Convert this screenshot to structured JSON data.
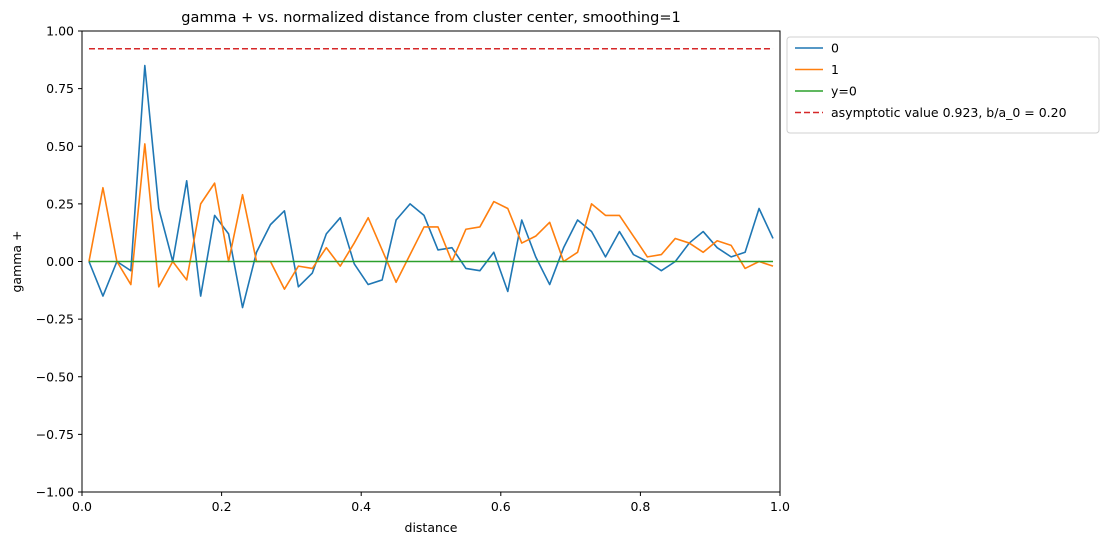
{
  "chart_data": {
    "type": "line",
    "title": "gamma + vs. normalized distance from cluster center, smoothing=1",
    "xlabel": "distance",
    "ylabel": "gamma +",
    "xlim": [
      0.0,
      1.0
    ],
    "ylim": [
      -1.0,
      1.0
    ],
    "xticks": [
      "0.0",
      "0.2",
      "0.4",
      "0.6",
      "0.8",
      "1.0"
    ],
    "xtick_values": [
      0.0,
      0.2,
      0.4,
      0.6,
      0.8,
      1.0
    ],
    "yticks": [
      "−1.00",
      "−0.75",
      "−0.50",
      "−0.25",
      "0.00",
      "0.25",
      "0.50",
      "0.75",
      "1.00"
    ],
    "ytick_values": [
      -1.0,
      -0.75,
      -0.5,
      -0.25,
      0.0,
      0.25,
      0.5,
      0.75,
      1.0
    ],
    "grid": false,
    "legend_position": "outside-top-right",
    "x": [
      0.01,
      0.03,
      0.05,
      0.07,
      0.09,
      0.11,
      0.13,
      0.15,
      0.17,
      0.19,
      0.21,
      0.23,
      0.25,
      0.27,
      0.29,
      0.31,
      0.33,
      0.35,
      0.37,
      0.39,
      0.41,
      0.43,
      0.45,
      0.47,
      0.49,
      0.51,
      0.53,
      0.55,
      0.57,
      0.59,
      0.61,
      0.63,
      0.65,
      0.67,
      0.69,
      0.71,
      0.73,
      0.75,
      0.77,
      0.79,
      0.81,
      0.83,
      0.85,
      0.87,
      0.89,
      0.91,
      0.93,
      0.95,
      0.97,
      0.99
    ],
    "series": [
      {
        "name": "0",
        "color": "#1f77b4",
        "style": "solid",
        "values": [
          0.0,
          -0.15,
          0.0,
          -0.04,
          0.85,
          0.23,
          0.0,
          0.35,
          -0.15,
          0.2,
          0.12,
          -0.2,
          0.04,
          0.16,
          0.22,
          -0.11,
          -0.05,
          0.12,
          0.19,
          -0.01,
          -0.1,
          -0.08,
          0.18,
          0.25,
          0.2,
          0.05,
          0.06,
          -0.03,
          -0.04,
          0.04,
          -0.13,
          0.18,
          0.02,
          -0.1,
          0.06,
          0.18,
          0.13,
          0.02,
          0.13,
          0.03,
          0.0,
          -0.04,
          0.0,
          0.08,
          0.13,
          0.06,
          0.02,
          0.04,
          0.23,
          0.1
        ]
      },
      {
        "name": "1",
        "color": "#ff7f0e",
        "style": "solid",
        "values": [
          0.0,
          0.32,
          0.0,
          -0.1,
          0.51,
          -0.11,
          0.0,
          -0.08,
          0.25,
          0.34,
          0.0,
          0.29,
          0.0,
          0.0,
          -0.12,
          -0.02,
          -0.03,
          0.06,
          -0.02,
          0.08,
          0.19,
          0.05,
          -0.09,
          0.03,
          0.15,
          0.15,
          0.0,
          0.14,
          0.15,
          0.26,
          0.23,
          0.08,
          0.11,
          0.17,
          0.0,
          0.04,
          0.25,
          0.2,
          0.2,
          0.11,
          0.02,
          0.03,
          0.1,
          0.08,
          0.04,
          0.09,
          0.07,
          -0.03,
          0.0,
          -0.02
        ]
      }
    ],
    "reference_lines": [
      {
        "name": "y=0",
        "y": 0.0,
        "color": "#2ca02c",
        "style": "solid"
      },
      {
        "name": "asymptotic value 0.923, b/a_0 = 0.20",
        "y": 0.923,
        "color": "#d62728",
        "style": "dashed"
      }
    ]
  }
}
